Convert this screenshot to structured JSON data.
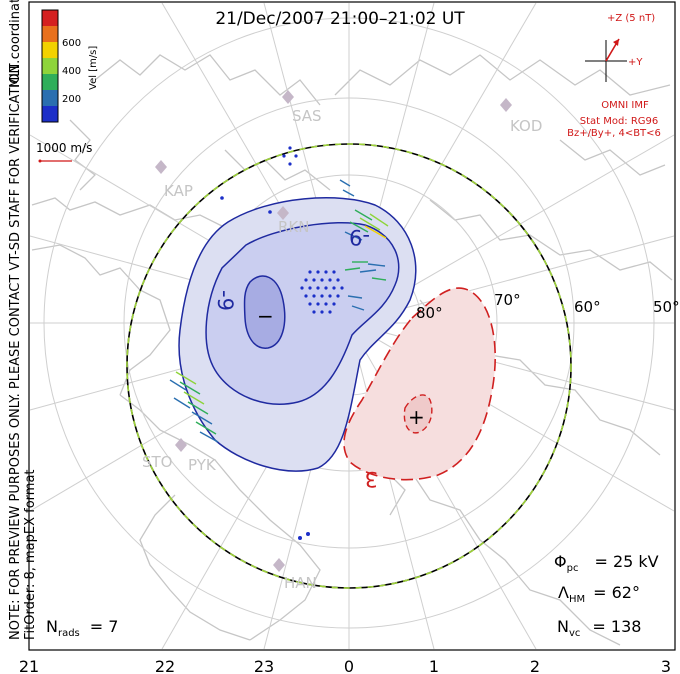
{
  "title": "21/Dec/2007 21:00–21:02 UT",
  "side_note": {
    "line1": "NOTE: FOR PREVIEW PURPOSES ONLY. PLEASE CONTACT VT-SD STAFF FOR VERIFICATION.",
    "line2": "FitOrder: 8, mapEX format",
    "line3": "MLT coordinates"
  },
  "velocity_scale": {
    "axis_label": "Vel [m/s]",
    "ticks": [
      "600",
      "400",
      "200"
    ],
    "colors": [
      "#d42020",
      "#e8701c",
      "#f2d200",
      "#8ed43a",
      "#2fae5a",
      "#2a6fb0",
      "#1c2fc8"
    ]
  },
  "reference_vector": {
    "label": "1000 m/s",
    "color": "#d01818"
  },
  "imf": {
    "z_label": "+Z (5 nT)",
    "y_label": "+Y",
    "lines": [
      "OMNI IMF",
      "Stat Mod: RG96",
      "Bz+/By+, 4<BT<6"
    ],
    "color": "#d01818"
  },
  "radars": [
    {
      "name": "SAS"
    },
    {
      "name": "KOD"
    },
    {
      "name": "KAP"
    },
    {
      "name": "RKN"
    },
    {
      "name": "STO"
    },
    {
      "name": "PYK"
    },
    {
      "name": "HAN"
    }
  ],
  "latitude_labels": [
    "80°",
    "70°",
    "60°",
    "50°"
  ],
  "mlt_labels": [
    "21",
    "22",
    "23",
    "0",
    "1",
    "2",
    "3"
  ],
  "contours": {
    "negative_label": "-9",
    "negative_label_2": "-9",
    "positive_label": "3",
    "min_marker": "−",
    "max_marker": "+",
    "negative_color": "#1f2aa0",
    "positive_color": "#d02020"
  },
  "stats": {
    "phi_symbol": "Φ",
    "phi_sub": "pc",
    "phi_value": "= 25 kV",
    "lambda_symbol": "Λ",
    "lambda_sub": "HM",
    "lambda_value": "= 62°",
    "nvc_symbol": "N",
    "nvc_sub": "vc",
    "nvc_value": "= 138",
    "nrads_symbol": "N",
    "nrads_sub": "rads",
    "nrads_value": "= 7"
  }
}
